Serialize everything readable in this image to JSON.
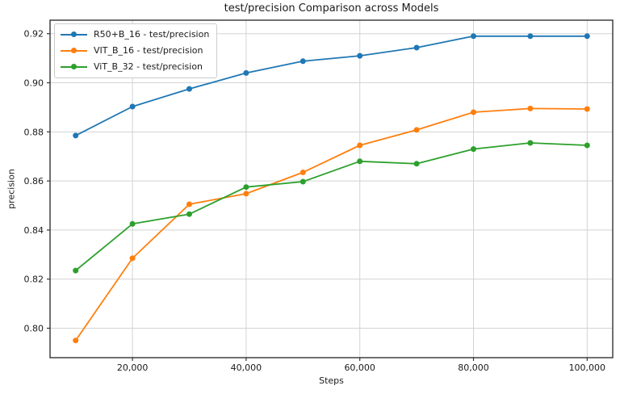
{
  "chart_data": {
    "type": "line",
    "title": "test/precision Comparison across Models",
    "xlabel": "Steps",
    "ylabel": "precision",
    "x": [
      10000,
      20000,
      30000,
      40000,
      50000,
      60000,
      70000,
      80000,
      90000,
      100000
    ],
    "series": [
      {
        "name": "R50+B_16 - test/precision",
        "color": "#1f77b4",
        "values": [
          0.8785,
          0.8903,
          0.8975,
          0.904,
          0.9088,
          0.911,
          0.9143,
          0.919,
          0.919,
          0.919
        ]
      },
      {
        "name": "VIT_B_16 - test/precision",
        "color": "#ff7f0e",
        "values": [
          0.795,
          0.8285,
          0.8505,
          0.8548,
          0.8635,
          0.8745,
          0.8808,
          0.888,
          0.8895,
          0.8893
        ]
      },
      {
        "name": "ViT_B_32 - test/precision",
        "color": "#2ca02c",
        "values": [
          0.8235,
          0.8425,
          0.8465,
          0.8575,
          0.8597,
          0.868,
          0.867,
          0.873,
          0.8755,
          0.8745
        ]
      }
    ],
    "xlim": [
      5500,
      104500
    ],
    "ylim": [
      0.788,
      0.9255
    ],
    "xticks": [
      20000,
      40000,
      60000,
      80000,
      100000
    ],
    "xtick_labels": [
      "20,000",
      "40,000",
      "60,000",
      "80,000",
      "100,000"
    ],
    "yticks": [
      0.8,
      0.82,
      0.84,
      0.86,
      0.88,
      0.9,
      0.92
    ],
    "ytick_labels": [
      "0.80",
      "0.82",
      "0.84",
      "0.86",
      "0.88",
      "0.90",
      "0.92"
    ],
    "grid": true,
    "legend_position": "upper-left",
    "grid_color": "#d3d3d3",
    "spine_color": "#333333",
    "text_color": "#1a1a1a"
  }
}
